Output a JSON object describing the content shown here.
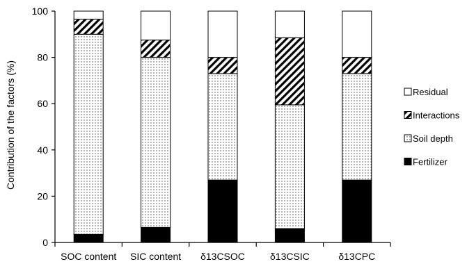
{
  "chart_data": {
    "type": "bar",
    "stacked": true,
    "categories": [
      "SOC content",
      "SIC content",
      "δ13CSOC",
      "δ13CSIC",
      "δ13CPC"
    ],
    "series": [
      {
        "name": "Fertilizer",
        "values": [
          3.5,
          6.5,
          27,
          6,
          27
        ]
      },
      {
        "name": "Soil depth",
        "values": [
          86.5,
          73.5,
          46,
          53.5,
          46
        ]
      },
      {
        "name": "Interactions",
        "values": [
          6.5,
          7.5,
          7,
          29,
          7
        ]
      },
      {
        "name": "Residual",
        "values": [
          3.5,
          12.5,
          20,
          11.5,
          20
        ]
      }
    ],
    "title": "",
    "xlabel": "",
    "ylabel": "Contribution of the factors (%)",
    "ylim": [
      0,
      100
    ],
    "yticks": [
      "0",
      "20",
      "40",
      "60",
      "80",
      "100"
    ],
    "grid": false,
    "legend_position": "right",
    "legend_order": [
      "Residual",
      "Interactions",
      "Soil depth",
      "Fertilizer"
    ]
  }
}
